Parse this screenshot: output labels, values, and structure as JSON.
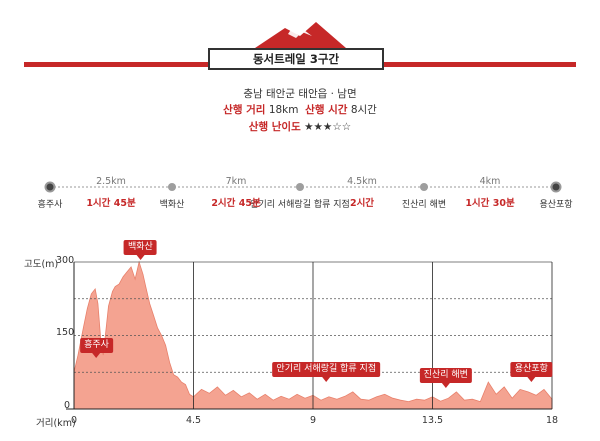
{
  "header": {
    "title": "동서트레일 3구간",
    "region": "충남 태안군 태안읍 · 남면",
    "distance_label": "산행 거리",
    "distance_value": "18km",
    "time_label": "산행 시간",
    "time_value": "8시간",
    "difficulty_label": "산행 난이도",
    "difficulty_stars": "★★★☆☆"
  },
  "colors": {
    "accent": "#c62828",
    "profile_fill": "#f4a391",
    "profile_stroke": "#e8806b"
  },
  "route": {
    "stops": [
      {
        "name": "흥주사",
        "km": 0
      },
      {
        "name": "백화산",
        "km": 2.5
      },
      {
        "name": "안기리 서해랑길 합류 지점",
        "km": 9.5
      },
      {
        "name": "진산리 해변",
        "km": 14
      },
      {
        "name": "용산포항",
        "km": 18
      }
    ],
    "segments": [
      {
        "distance": "2.5km",
        "duration": "1시간 45분"
      },
      {
        "distance": "7km",
        "duration": "2시간 45분"
      },
      {
        "distance": "4.5km",
        "duration": "2시간"
      },
      {
        "distance": "4km",
        "duration": "1시간 30분"
      }
    ]
  },
  "chart_data": {
    "type": "area",
    "title": "",
    "ylabel": "고도(m)",
    "xlabel": "거리(km)",
    "ylim": [
      0,
      300
    ],
    "xlim": [
      0,
      18
    ],
    "yticks": [
      "0",
      "150",
      "300"
    ],
    "xticks": [
      "0",
      "4.5",
      "9",
      "13.5",
      "18"
    ],
    "x": [
      0,
      0.15,
      0.35,
      0.5,
      0.65,
      0.8,
      0.9,
      1.0,
      1.1,
      1.2,
      1.3,
      1.45,
      1.55,
      1.7,
      1.85,
      2.0,
      2.15,
      2.3,
      2.45,
      2.6,
      2.7,
      2.85,
      3.0,
      3.15,
      3.3,
      3.45,
      3.6,
      3.75,
      3.9,
      4.05,
      4.2,
      4.35,
      4.5,
      4.8,
      5.1,
      5.4,
      5.7,
      6.0,
      6.3,
      6.6,
      6.9,
      7.2,
      7.5,
      7.8,
      8.1,
      8.4,
      8.7,
      9.0,
      9.3,
      9.6,
      9.9,
      10.2,
      10.5,
      10.8,
      11.1,
      11.4,
      11.7,
      12.0,
      12.3,
      12.6,
      12.9,
      13.2,
      13.5,
      13.8,
      14.1,
      14.4,
      14.7,
      15.0,
      15.3,
      15.6,
      15.9,
      16.2,
      16.5,
      16.8,
      17.1,
      17.4,
      17.7,
      18.0
    ],
    "y": [
      75,
      110,
      165,
      205,
      235,
      245,
      215,
      145,
      110,
      160,
      210,
      240,
      250,
      255,
      270,
      280,
      290,
      265,
      300,
      275,
      250,
      215,
      190,
      165,
      150,
      130,
      95,
      70,
      65,
      55,
      50,
      30,
      25,
      40,
      32,
      45,
      28,
      38,
      25,
      33,
      20,
      30,
      18,
      26,
      20,
      30,
      22,
      28,
      18,
      25,
      20,
      26,
      35,
      20,
      18,
      25,
      30,
      22,
      18,
      15,
      20,
      18,
      25,
      16,
      22,
      35,
      18,
      20,
      15,
      55,
      30,
      45,
      22,
      40,
      35,
      28,
      40,
      20
    ],
    "annotations": [
      {
        "label": "흥주사",
        "km": 0.6
      },
      {
        "label": "백화산",
        "km": 2.5
      },
      {
        "label": "안기리 서해랑길 합류 지점",
        "km": 9.5
      },
      {
        "label": "진산리 해변",
        "km": 14.0
      },
      {
        "label": "용산포항",
        "km": 17.3
      }
    ],
    "grid": true
  }
}
